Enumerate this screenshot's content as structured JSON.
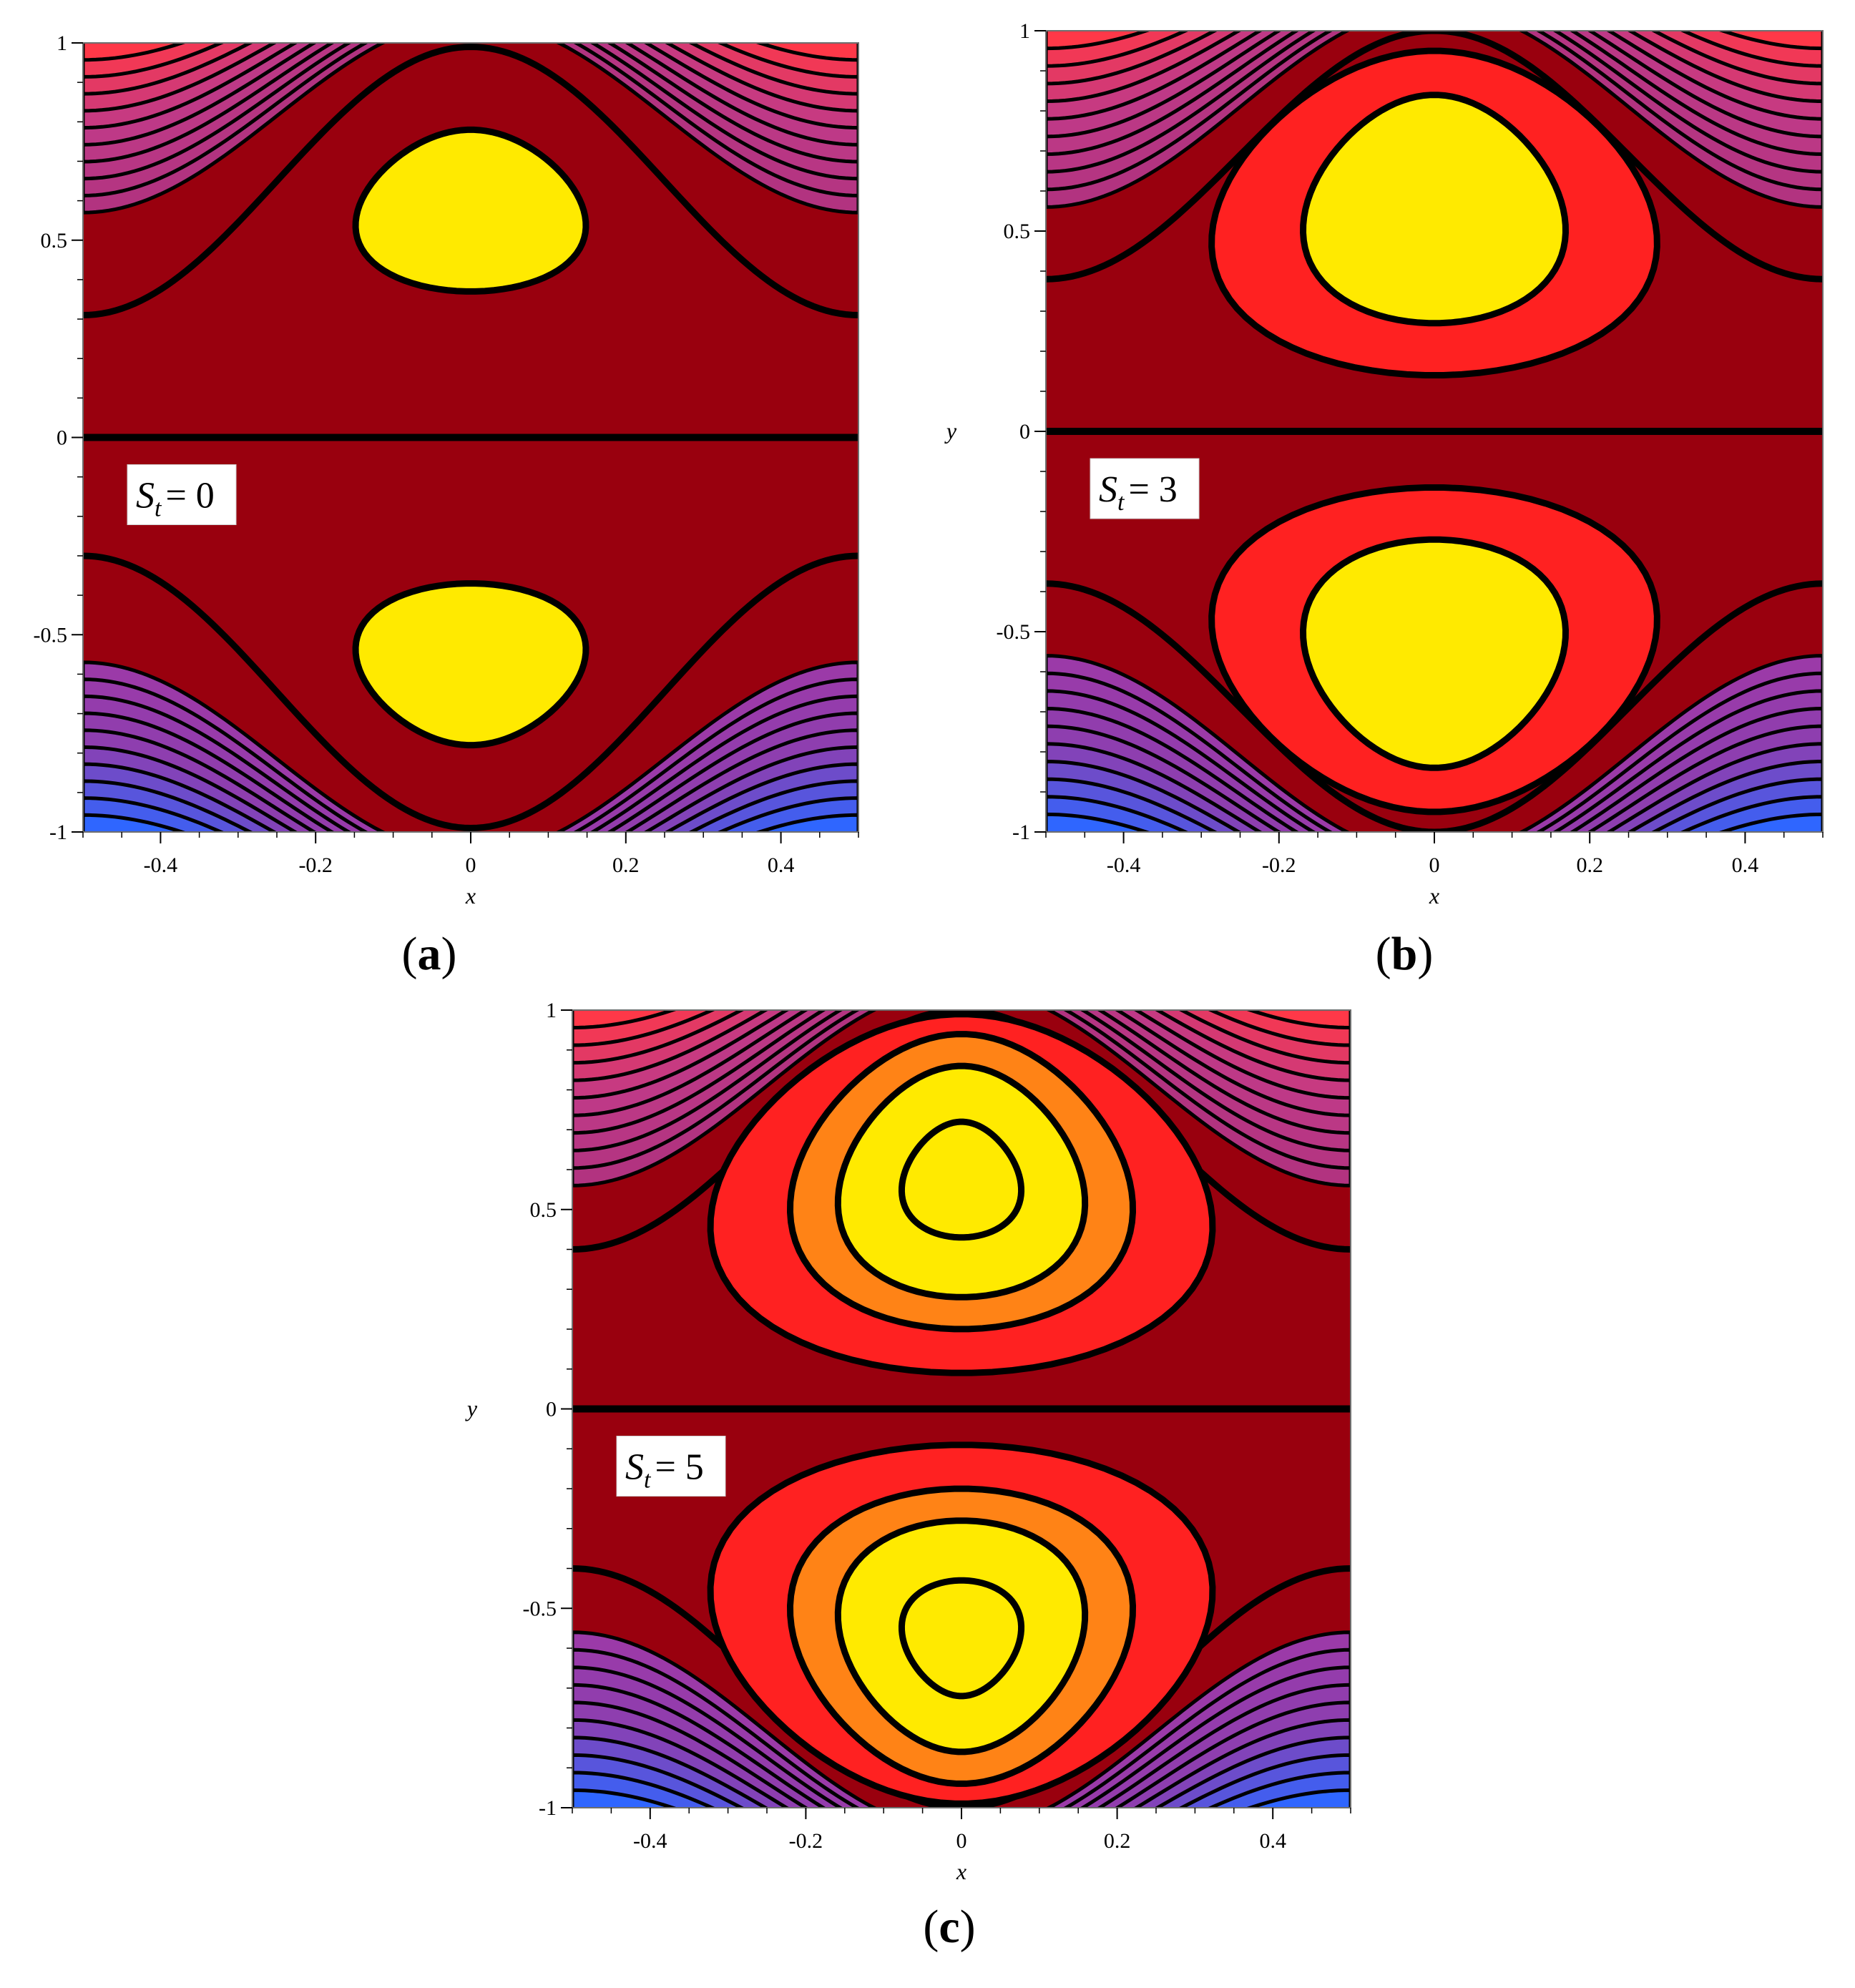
{
  "panels": [
    {
      "caption": "(a)",
      "annotation": {
        "symbol": "S",
        "subscript": "t",
        "value": "= 0"
      },
      "chart_data": {
        "type": "contour",
        "title": "",
        "xlabel": "x",
        "ylabel": "",
        "xlim": [
          -0.5,
          0.5
        ],
        "ylim": [
          -1,
          1
        ],
        "xticks": [
          -0.4,
          -0.2,
          0,
          0.2,
          0.4
        ],
        "yticks": [
          -1,
          -0.5,
          0,
          0.5,
          1
        ],
        "xtick_labels": [
          "-0.4",
          "-0.2",
          "0",
          "0.2",
          "0.4"
        ],
        "ytick_labels": [
          "-1",
          "-0.5",
          "0",
          "0.5",
          "1"
        ],
        "parameter": {
          "name": "S_t",
          "value": 0
        },
        "vortex_centers": [
          [
            0,
            0.57
          ],
          [
            0,
            -0.57
          ]
        ],
        "core_levels": [
          {
            "color": "#ffea00",
            "half_width": 0.145,
            "top": 0.78,
            "bottom": 0.37
          }
        ],
        "streamline_top_y": {
          "edge": 0.31,
          "center": 0.99
        },
        "streamline_bottom_y": {
          "edge": -0.3,
          "center": -0.99
        },
        "outer_band_start": 0.57,
        "outer_band_count": 10
      }
    },
    {
      "caption": "(b)",
      "annotation": {
        "symbol": "S",
        "subscript": "t",
        "value": "= 3"
      },
      "chart_data": {
        "type": "contour",
        "title": "",
        "xlabel": "x",
        "ylabel": "y",
        "xlim": [
          -0.5,
          0.5
        ],
        "ylim": [
          -1,
          1
        ],
        "xticks": [
          -0.4,
          -0.2,
          0,
          0.2,
          0.4
        ],
        "yticks": [
          -1,
          -0.5,
          0,
          0.5,
          1
        ],
        "xtick_labels": [
          "-0.4",
          "-0.2",
          "0",
          "0.2",
          "0.4"
        ],
        "ytick_labels": [
          "-1",
          "-0.5",
          "0",
          "0.5",
          "1"
        ],
        "parameter": {
          "name": "S_t",
          "value": 3
        },
        "vortex_centers": [
          [
            0,
            0.55
          ],
          [
            0,
            -0.55
          ]
        ],
        "core_levels": [
          {
            "color": "#ff2121",
            "half_width": 0.28,
            "top": 0.95,
            "bottom": 0.14
          },
          {
            "color": "#ffea00",
            "half_width": 0.165,
            "top": 0.84,
            "bottom": 0.27
          }
        ],
        "streamline_top_y": {
          "edge": 0.38,
          "center": 1.0
        },
        "streamline_bottom_y": {
          "edge": -0.38,
          "center": -1.0
        },
        "outer_band_start": 0.56,
        "outer_band_count": 10
      }
    },
    {
      "caption": "(c)",
      "annotation": {
        "symbol": "S",
        "subscript": "t",
        "value": "= 5"
      },
      "chart_data": {
        "type": "contour",
        "title": "",
        "xlabel": "x",
        "ylabel": "y",
        "xlim": [
          -0.5,
          0.5
        ],
        "ylim": [
          -1,
          1
        ],
        "xticks": [
          -0.4,
          -0.2,
          0,
          0.2,
          0.4
        ],
        "yticks": [
          -1,
          -0.5,
          0,
          0.5,
          1
        ],
        "xtick_labels": [
          "-0.4",
          "-0.2",
          "0",
          "0.2",
          "0.4"
        ],
        "ytick_labels": [
          "-1",
          "-0.5",
          "0",
          "0.5",
          "1"
        ],
        "parameter": {
          "name": "S_t",
          "value": 5
        },
        "vortex_centers": [
          [
            0,
            0.55
          ],
          [
            0,
            -0.55
          ]
        ],
        "core_levels": [
          {
            "color": "#ff2121",
            "half_width": 0.315,
            "top": 0.99,
            "bottom": 0.09
          },
          {
            "color": "#ff8316",
            "half_width": 0.215,
            "top": 0.94,
            "bottom": 0.2
          },
          {
            "color": "#ffea00",
            "half_width": 0.155,
            "top": 0.86,
            "bottom": 0.28
          },
          {
            "color": "#ffea00",
            "half_width": 0.075,
            "top": 0.72,
            "bottom": 0.43
          }
        ],
        "streamline_top_y": {
          "edge": 0.4,
          "center": 1.0
        },
        "streamline_bottom_y": {
          "edge": -0.4,
          "center": -1.0
        },
        "outer_band_start": 0.56,
        "outer_band_count": 10
      }
    }
  ],
  "colors": {
    "background_flow": "#99000e",
    "contour_line": "#000000",
    "top_band_edge": "#ff3848",
    "top_band_mid": "#c03a88",
    "bottom_band_mid": "#8c3fb0",
    "bottom_band_edge": "#2f66ff",
    "label_box": "#ffffff"
  }
}
